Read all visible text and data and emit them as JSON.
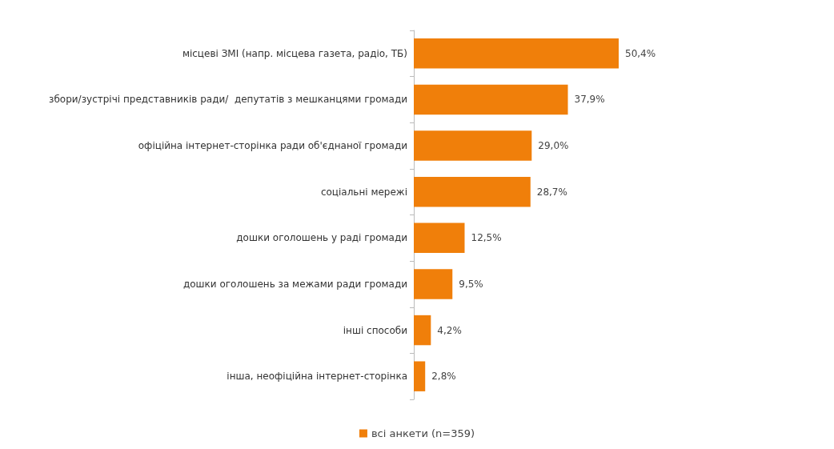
{
  "chart_data": {
    "type": "bar",
    "orientation": "horizontal",
    "categories": [
      "місцеві ЗМІ (напр. місцева газета, радіо, ТБ)",
      "збори/зустрічі представників ради/  депутатів з мешканцями громади",
      "офіційна інтернет-сторінка ради об'єднаної громади",
      "соціальні мережі",
      "дошки оголошень у раді громади",
      "дошки оголошень за межами ради громади",
      "інші способи",
      "інша, неофіційна інтернет-сторінка"
    ],
    "series": [
      {
        "name": "всі анкети (n=359)",
        "color": "#f07f0a",
        "values": [
          50.4,
          37.9,
          29.0,
          28.7,
          12.5,
          9.5,
          4.2,
          2.8
        ],
        "value_labels": [
          "50,4%",
          "37,9%",
          "29,0%",
          "28,7%",
          "12,5%",
          "9,5%",
          "4,2%",
          "2,8%"
        ]
      }
    ],
    "legend": "bottom"
  }
}
